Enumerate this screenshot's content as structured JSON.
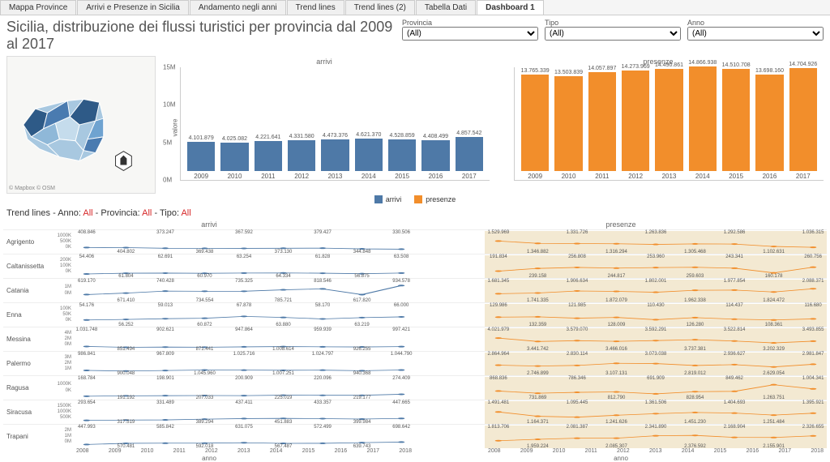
{
  "tabs": [
    "Mappa Province",
    "Arrivi e Presenze in Sicilia",
    "Andamento negli anni",
    "Trend lines",
    "Trend lines (2)",
    "Tabella Dati",
    "Dashboard 1"
  ],
  "active_tab": 6,
  "title": "Sicilia, distribuzione dei flussi turistici per provincia dal 2009 al 2017",
  "filters": [
    {
      "label": "Provincia",
      "value": "(All)"
    },
    {
      "label": "Tipo",
      "value": "(All)"
    },
    {
      "label": "Anno",
      "value": "(All)"
    }
  ],
  "map": {
    "credit": "© Mapbox © OSM"
  },
  "colors": {
    "arrivi": "#4e79a7",
    "presenze": "#f28e2b",
    "grid": "#e0e0e0",
    "pres_bg": "#f3e9d2"
  },
  "arrivi_chart": {
    "title": "arrivi",
    "ylabel": "valore",
    "categories": [
      "2009",
      "2010",
      "2011",
      "2012",
      "2013",
      "2014",
      "2015",
      "2016",
      "2017"
    ],
    "values": [
      4101879,
      4025082,
      4221641,
      4331580,
      4473376,
      4621370,
      4528859,
      4408499,
      4857542
    ],
    "value_labels": [
      "4.101.879",
      "4.025.082",
      "4.221.641",
      "4.331.580",
      "4.473.376",
      "4.621.370",
      "4.528.859",
      "4.408.499",
      "4.857.542"
    ],
    "ymax": 15000000,
    "yticks": [
      "0M",
      "5M",
      "10M",
      "15M"
    ]
  },
  "presenze_chart": {
    "title": "presenze",
    "categories": [
      "2009",
      "2010",
      "2011",
      "2012",
      "2013",
      "2014",
      "2015",
      "2016",
      "2017"
    ],
    "values": [
      13765339,
      13503839,
      14057897,
      14273969,
      14490861,
      14866938,
      14510708,
      13698160,
      14704926
    ],
    "value_labels": [
      "13.765.339",
      "13.503.839",
      "14.057.897",
      "14.273.969",
      "14.490.861",
      "14.866.938",
      "14.510.708",
      "13.698.160",
      "14.704.926"
    ],
    "ymax": 15000000
  },
  "legend": [
    {
      "label": "arrivi",
      "color": "#4e79a7"
    },
    {
      "label": "presenze",
      "color": "#f28e2b"
    }
  ],
  "trend_header": {
    "prefix": "Trend lines - ",
    "parts": [
      [
        "Anno: ",
        "All"
      ],
      [
        "Provincia: ",
        "All"
      ],
      [
        "Tipo: ",
        "All"
      ]
    ]
  },
  "trend_xlabels": [
    "2008",
    "2009",
    "2010",
    "2011",
    "2012",
    "2013",
    "2014",
    "2015",
    "2016",
    "2017",
    "2018"
  ],
  "trend_xaxis_title": "anno",
  "provinces": [
    {
      "name": "Agrigento",
      "ymax_a": 1000000,
      "yticks_a": [
        "1000K",
        "500K",
        "0K"
      ],
      "arrivi": [
        408846,
        404802,
        373247,
        369438,
        367592,
        373130,
        379427,
        344848,
        330506
      ],
      "arrivi_lbl": [
        "408.846",
        "404.802",
        "373.247",
        "369.438",
        "367.592",
        "373.130",
        "379.427",
        "344.848",
        "330.506"
      ],
      "presenze": [
        1529969,
        1346882,
        1331726,
        1316294,
        1263836,
        1305468,
        1292586,
        1102631,
        1036315
      ],
      "presenze_lbl": [
        "1.529.969",
        "1.346.882",
        "1.331.726",
        "1.316.294",
        "1.263.836",
        "1.305.468",
        "1.292.586",
        "1.102.631",
        "1.036.315"
      ],
      "ymax_p": 2000000
    },
    {
      "name": "Caltanissetta",
      "ymax_a": 200000,
      "yticks_a": [
        "200K",
        "100K",
        "0K"
      ],
      "arrivi": [
        54406,
        61804,
        62691,
        60970,
        63254,
        64334,
        61828,
        56875,
        63508
      ],
      "arrivi_lbl": [
        "54.406",
        "61.804",
        "62.691",
        "60.970",
        "63.254",
        "64.334",
        "61.828",
        "56.875",
        "63.508"
      ],
      "presenze": [
        191834,
        239158,
        256808,
        244817,
        253960,
        259603,
        243341,
        160178,
        260756
      ],
      "presenze_lbl": [
        "191.834",
        "239.158",
        "256.808",
        "244.817",
        "253.960",
        "259.603",
        "243.341",
        "160.178",
        "260.756"
      ],
      "ymax_p": 400000
    },
    {
      "name": "Catania",
      "ymax_a": 1000000,
      "yticks_a": [
        "1M",
        "0M"
      ],
      "arrivi": [
        619170,
        671410,
        740428,
        734554,
        735325,
        785721,
        818546,
        617820,
        934578
      ],
      "arrivi_lbl": [
        "619.170",
        "671.410",
        "740.428",
        "734.554",
        "735.325",
        "785.721",
        "818.546",
        "617.820",
        "934.578"
      ],
      "presenze": [
        1681345,
        1741335,
        1906634,
        1872079,
        1802001,
        1962338,
        1977854,
        1824472,
        2088371
      ],
      "presenze_lbl": [
        "1.681.345",
        "1.741.335",
        "1.906.634",
        "1.872.079",
        "1.802.001",
        "1.962.338",
        "1.977.854",
        "1.824.472",
        "2.088.371"
      ],
      "ymax_p": 2500000
    },
    {
      "name": "Enna",
      "ymax_a": 100000,
      "yticks_a": [
        "100K",
        "50K",
        "0K"
      ],
      "arrivi": [
        54176,
        56252,
        59013,
        60872,
        67878,
        63880,
        58170,
        63219,
        66000
      ],
      "arrivi_lbl": [
        "54.176",
        "56.252",
        "59.013",
        "60.872",
        "67.878",
        "63.880",
        "58.170",
        "63.219",
        "66.000"
      ],
      "presenze": [
        129986,
        132359,
        121985,
        128009,
        110430,
        126280,
        114437,
        108361,
        116680
      ],
      "presenze_lbl": [
        "129.986",
        "132.359",
        "121.985",
        "128.009",
        "110.430",
        "126.280",
        "114.437",
        "108.361",
        "116.680"
      ],
      "ymax_p": 200000
    },
    {
      "name": "Messina",
      "ymax_a": 4000000,
      "yticks_a": [
        "4M",
        "2M",
        "0M"
      ],
      "arrivi": [
        1031748,
        851494,
        902621,
        871441,
        947864,
        1008614,
        959939,
        926255,
        997421
      ],
      "arrivi_lbl": [
        "1.031.748",
        "851.494",
        "902.621",
        "871.441",
        "947.864",
        "1.008.614",
        "959.939",
        "926.255",
        "997.421"
      ],
      "presenze": [
        4021979,
        3441742,
        3579070,
        3466016,
        3592291,
        3737381,
        3522814,
        3202329,
        3493855
      ],
      "presenze_lbl": [
        "4.021.979",
        "3.441.742",
        "3.579.070",
        "3.466.016",
        "3.592.291",
        "3.737.381",
        "3.522.814",
        "3.202.329",
        "3.493.855"
      ],
      "ymax_p": 5000000
    },
    {
      "name": "Palermo",
      "ymax_a": 3000000,
      "yticks_a": [
        "3M",
        "2M",
        "1M"
      ],
      "arrivi": [
        986841,
        900048,
        967809,
        1045960,
        1025716,
        1007251,
        1024797,
        940368,
        1044790
      ],
      "arrivi_lbl": [
        "986.841",
        "900.048",
        "967.809",
        "1.045.960",
        "1.025.716",
        "1.007.251",
        "1.024.797",
        "940.368",
        "1.044.790"
      ],
      "presenze": [
        2864964,
        2746899,
        2830114,
        3107131,
        3073038,
        2819012,
        2936627,
        2629054,
        2981847
      ],
      "presenze_lbl": [
        "2.864.964",
        "2.746.899",
        "2.830.114",
        "3.107.131",
        "3.073.038",
        "2.819.012",
        "2.936.627",
        "2.629.054",
        "2.981.847"
      ],
      "ymax_p": 4000000
    },
    {
      "name": "Ragusa",
      "ymax_a": 1000000,
      "yticks_a": [
        "1000K",
        "0K"
      ],
      "arrivi": [
        168784,
        191192,
        198901,
        207033,
        200909,
        225019,
        220096,
        219177,
        274409
      ],
      "arrivi_lbl": [
        "168.784",
        "191.192",
        "198.901",
        "207.033",
        "200.909",
        "225.019",
        "220.096",
        "219.177",
        "274.409"
      ],
      "presenze": [
        868836,
        731869,
        786346,
        812790,
        691909,
        828954,
        849462,
        1263751,
        1004341
      ],
      "presenze_lbl": [
        "868.836",
        "731.869",
        "786.346",
        "812.790",
        "691.909",
        "828.954",
        "849.462",
        "1.263.751",
        "1.004.341"
      ],
      "ymax_p": 1500000
    },
    {
      "name": "Siracusa",
      "ymax_a": 1500000,
      "yticks_a": [
        "1500K",
        "1000K",
        "500K"
      ],
      "arrivi": [
        293654,
        317519,
        331489,
        389294,
        437411,
        451883,
        433357,
        399984,
        447665
      ],
      "arrivi_lbl": [
        "293.654",
        "317.519",
        "331.489",
        "389.294",
        "437.411",
        "451.883",
        "433.357",
        "399.984",
        "447.665"
      ],
      "presenze": [
        1491481,
        1164371,
        1095445,
        1241626,
        1361506,
        1451230,
        1404693,
        1251484,
        1395921
      ],
      "presenze_lbl": [
        "1.491.481",
        "1.164.371",
        "1.095.445",
        "1.241.626",
        "1.361.506",
        "1.451.230",
        "1.404.693",
        "1.251.484",
        "1.395.921"
      ],
      "ymax_p": 2000000
    },
    {
      "name": "Trapani",
      "ymax_a": 2000000,
      "yticks_a": [
        "2M",
        "1M",
        "0M"
      ],
      "arrivi": [
        447993,
        570481,
        585842,
        592018,
        631075,
        567487,
        572499,
        639743,
        698642
      ],
      "arrivi_lbl": [
        "447.993",
        "570.481",
        "585.842",
        "592.018",
        "631.075",
        "567.487",
        "572.499",
        "639.743",
        "698.642"
      ],
      "presenze": [
        1813706,
        1959224,
        2081387,
        2085307,
        2341890,
        2376592,
        2168904,
        2155901,
        2326655
      ],
      "presenze_lbl": [
        "1.813.706",
        "1.959.224",
        "2.081.387",
        "2.085.307",
        "2.341.890",
        "2.376.592",
        "2.168.904",
        "2.155.901",
        "2.326.655"
      ],
      "ymax_p": 3000000
    }
  ]
}
